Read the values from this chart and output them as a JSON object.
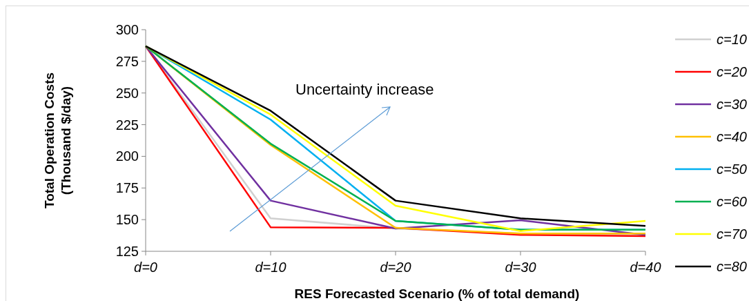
{
  "chart_data": {
    "type": "line",
    "xlabel": "RES Forecasted Scenario (% of total demand)",
    "ylabel": "Total Operation Costs\n(Thousand $/day)",
    "categories": [
      "d=0",
      "d=10",
      "d=20",
      "d=30",
      "d=40"
    ],
    "ylim": [
      125,
      300
    ],
    "yticks": [
      125,
      150,
      175,
      200,
      225,
      250,
      275,
      300
    ],
    "grid": false,
    "legend": "right",
    "marker": "none",
    "line_style": "solid",
    "annotations": [
      "Uncertainty increase"
    ],
    "series": [
      {
        "name": "c=10",
        "color": "#d0d0d0",
        "values": [
          287,
          151,
          143,
          139,
          138.5
        ]
      },
      {
        "name": "c=20",
        "color": "#ff0000",
        "values": [
          287,
          144,
          143.5,
          138,
          137
        ]
      },
      {
        "name": "c=30",
        "color": "#7030a0",
        "values": [
          287,
          165,
          143,
          149.5,
          138
        ]
      },
      {
        "name": "c=40",
        "color": "#ffc000",
        "values": [
          287,
          209,
          143.5,
          139,
          139
        ]
      },
      {
        "name": "c=50",
        "color": "#00b0f0",
        "values": [
          287,
          229,
          149,
          142,
          142
        ]
      },
      {
        "name": "c=60",
        "color": "#00b050",
        "values": [
          287,
          210,
          149,
          142,
          142
        ]
      },
      {
        "name": "c=70",
        "color": "#ffff00",
        "values": [
          287,
          233,
          161,
          141,
          149
        ]
      },
      {
        "name": "c=80",
        "color": "#000000",
        "values": [
          287,
          236,
          165,
          151,
          145
        ]
      }
    ]
  }
}
